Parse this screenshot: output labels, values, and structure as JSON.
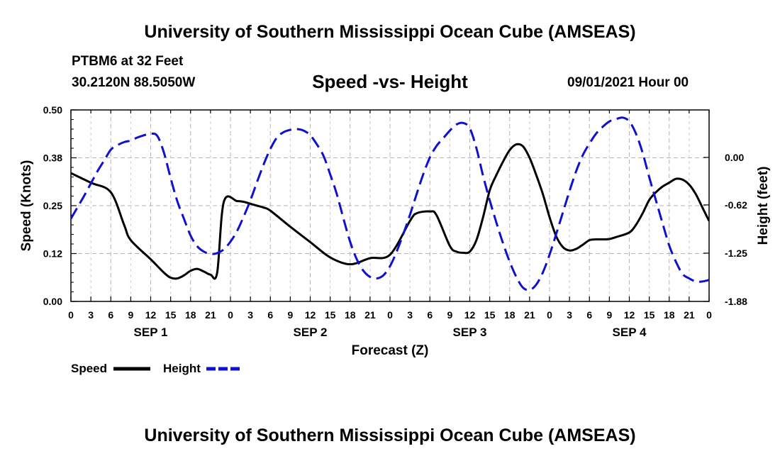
{
  "header": {
    "top_title": "University of Southern Mississippi Ocean Cube (AMSEAS)",
    "station": "PTBM6 at 32 Feet",
    "coords": "30.2120N  88.5050W",
    "plot_title": "Speed -vs- Height",
    "datetime": "09/01/2021 Hour 00",
    "bottom_title": "University of Southern Mississippi Ocean Cube (AMSEAS)"
  },
  "chart_data": {
    "type": "line",
    "title": "Speed -vs- Height",
    "xlabel": "Forecast (Z)",
    "ylabel": "Speed (Knots)",
    "y2label": "Height (feet)",
    "xlim": [
      0,
      96
    ],
    "ylim": [
      0,
      0.5
    ],
    "y2lim": [
      -1.88,
      0.62
    ],
    "grid": true,
    "legend_position": "bottom-left",
    "x_tick_labels": [
      "0",
      "3",
      "6",
      "9",
      "12",
      "15",
      "18",
      "21",
      "0",
      "3",
      "6",
      "9",
      "12",
      "15",
      "18",
      "21",
      "0",
      "3",
      "6",
      "9",
      "12",
      "15",
      "18",
      "21",
      "0",
      "3",
      "6",
      "9",
      "12",
      "15",
      "18",
      "21",
      "0"
    ],
    "day_labels": [
      {
        "label": "SEP 1",
        "x": 12
      },
      {
        "label": "SEP 2",
        "x": 36
      },
      {
        "label": "SEP 3",
        "x": 60
      },
      {
        "label": "SEP 4",
        "x": 84
      }
    ],
    "y_ticks": [
      {
        "value": 0.0,
        "label": "0.00"
      },
      {
        "value": 0.125,
        "label": "0.12"
      },
      {
        "value": 0.25,
        "label": "0.25"
      },
      {
        "value": 0.375,
        "label": "0.38"
      },
      {
        "value": 0.5,
        "label": "0.50"
      }
    ],
    "y2_ticks": [
      {
        "value": 0.0,
        "label": "0.00"
      },
      {
        "value": -0.62,
        "label": "-0.62"
      },
      {
        "value": -1.25,
        "label": "-1.25"
      },
      {
        "value": -1.88,
        "label": "-1.88"
      }
    ],
    "series": [
      {
        "name": "Speed",
        "axis": "left",
        "color": "#000000",
        "style": "solid",
        "x": [
          0,
          3,
          6,
          8,
          9,
          12,
          14,
          15,
          16,
          17,
          18,
          19,
          20,
          21,
          22,
          23,
          25,
          26,
          27,
          28,
          29,
          30,
          33,
          36,
          39,
          42,
          45,
          48,
          51,
          52,
          54,
          55,
          57,
          58,
          59,
          60,
          61,
          62,
          63,
          64,
          65,
          66,
          67,
          68,
          69,
          70,
          71,
          72,
          73,
          74,
          75,
          76,
          77,
          78,
          79,
          80,
          81,
          82,
          84,
          85,
          86,
          87,
          88,
          89,
          90,
          91,
          92,
          93,
          94,
          95,
          96
        ],
        "values": [
          0.335,
          0.31,
          0.285,
          0.2,
          0.16,
          0.11,
          0.075,
          0.062,
          0.06,
          0.068,
          0.08,
          0.085,
          0.078,
          0.07,
          0.075,
          0.26,
          0.262,
          0.26,
          0.255,
          0.25,
          0.245,
          0.237,
          0.195,
          0.155,
          0.115,
          0.097,
          0.113,
          0.122,
          0.21,
          0.23,
          0.235,
          0.225,
          0.145,
          0.13,
          0.127,
          0.13,
          0.16,
          0.22,
          0.29,
          0.33,
          0.365,
          0.395,
          0.41,
          0.405,
          0.375,
          0.33,
          0.28,
          0.22,
          0.17,
          0.142,
          0.133,
          0.137,
          0.148,
          0.16,
          0.162,
          0.162,
          0.163,
          0.168,
          0.18,
          0.2,
          0.23,
          0.265,
          0.285,
          0.3,
          0.31,
          0.32,
          0.318,
          0.305,
          0.28,
          0.245,
          0.21
        ]
      },
      {
        "name": "Height",
        "axis": "right",
        "color": "#1010d0",
        "style": "dashed",
        "x": [
          0,
          1,
          2,
          3,
          4,
          5,
          6,
          7,
          8,
          9,
          10,
          11,
          12,
          13,
          14,
          15,
          16,
          17,
          18,
          19,
          20,
          21,
          22,
          23,
          24,
          25,
          26,
          27,
          28,
          29,
          30,
          31,
          32,
          33,
          34,
          35,
          36,
          37,
          38,
          39,
          40,
          41,
          42,
          43,
          44,
          45,
          46,
          47,
          48,
          49,
          50,
          51,
          52,
          53,
          54,
          55,
          56,
          57,
          58,
          59,
          60,
          61,
          62,
          63,
          64,
          65,
          66,
          67,
          68,
          69,
          70,
          71,
          72,
          73,
          74,
          75,
          76,
          77,
          78,
          79,
          80,
          81,
          82,
          83,
          84,
          85,
          86,
          87,
          88,
          89,
          90,
          91,
          92,
          93,
          94,
          95,
          96
        ],
        "values": [
          -0.8,
          -0.65,
          -0.5,
          -0.34,
          -0.18,
          -0.04,
          0.1,
          0.16,
          0.2,
          0.22,
          0.26,
          0.29,
          0.31,
          0.28,
          0.06,
          -0.27,
          -0.57,
          -0.8,
          -1.02,
          -1.16,
          -1.23,
          -1.26,
          -1.25,
          -1.2,
          -1.1,
          -0.96,
          -0.77,
          -0.56,
          -0.32,
          -0.09,
          0.11,
          0.26,
          0.33,
          0.36,
          0.37,
          0.35,
          0.29,
          0.17,
          0.02,
          -0.22,
          -0.48,
          -0.8,
          -1.1,
          -1.33,
          -1.48,
          -1.56,
          -1.58,
          -1.54,
          -1.42,
          -1.23,
          -1.0,
          -0.75,
          -0.48,
          -0.22,
          0.0,
          0.15,
          0.25,
          0.35,
          0.43,
          0.45,
          0.38,
          0.12,
          -0.24,
          -0.56,
          -0.85,
          -1.12,
          -1.36,
          -1.56,
          -1.7,
          -1.73,
          -1.66,
          -1.5,
          -1.27,
          -1.0,
          -0.72,
          -0.44,
          -0.18,
          0.03,
          0.18,
          0.31,
          0.4,
          0.47,
          0.5,
          0.52,
          0.47,
          0.31,
          0.06,
          -0.26,
          -0.56,
          -0.86,
          -1.15,
          -1.36,
          -1.52,
          -1.58,
          -1.62,
          -1.62,
          -1.6
        ]
      }
    ]
  }
}
